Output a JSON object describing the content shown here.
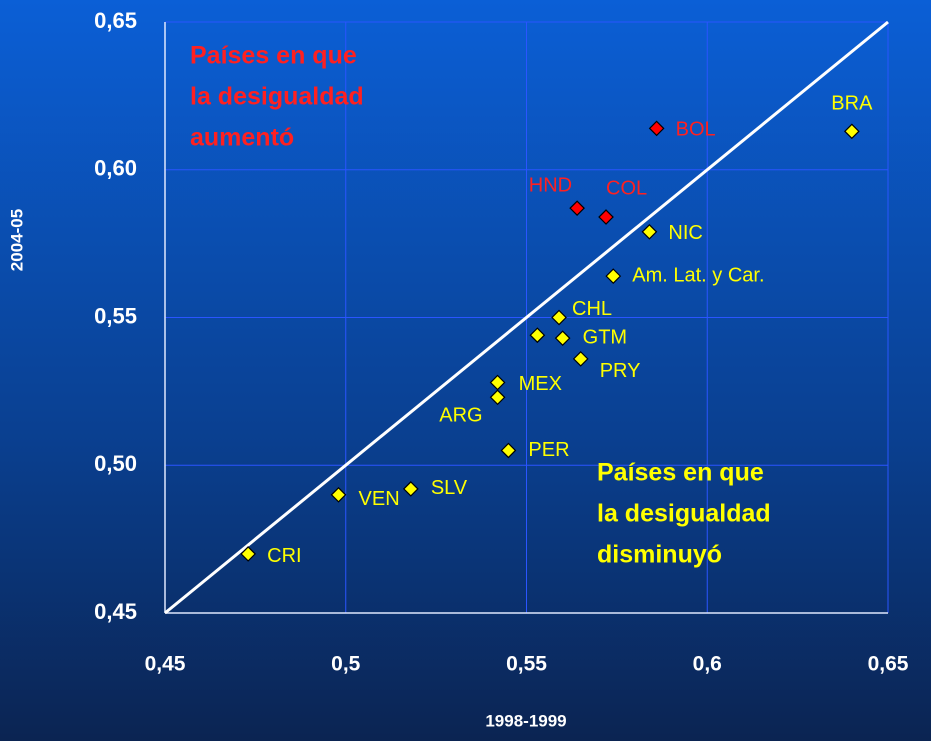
{
  "chart_data": {
    "type": "scatter",
    "xlabel": "1998-1999",
    "ylabel": "2004-05",
    "xlim": [
      0.45,
      0.65
    ],
    "ylim": [
      0.45,
      0.65
    ],
    "xticks": [
      {
        "value": 0.45,
        "label": "0,45"
      },
      {
        "value": 0.5,
        "label": "0,5"
      },
      {
        "value": 0.55,
        "label": "0,55"
      },
      {
        "value": 0.6,
        "label": "0,6"
      },
      {
        "value": 0.65,
        "label": "0,65"
      }
    ],
    "yticks": [
      {
        "value": 0.45,
        "label": "0,45"
      },
      {
        "value": 0.5,
        "label": "0,50"
      },
      {
        "value": 0.55,
        "label": "0,55"
      },
      {
        "value": 0.6,
        "label": "0,60"
      },
      {
        "value": 0.65,
        "label": "0,65"
      }
    ],
    "grid": true,
    "series": [
      {
        "color": "#ffff00",
        "label_color": "#ffff00",
        "labels": [
          "CRI",
          "VEN",
          "SLV",
          "ARG",
          "MEX",
          "PER",
          null,
          "GTM",
          "CHL",
          "PRY",
          "Am. Lat. y Car.",
          "NIC",
          "BRA"
        ],
        "x": [
          0.473,
          0.498,
          0.518,
          0.542,
          0.542,
          0.545,
          0.553,
          0.56,
          0.559,
          0.565,
          0.574,
          0.584,
          0.64
        ],
        "values": [
          0.47,
          0.49,
          0.492,
          0.523,
          0.528,
          0.505,
          0.544,
          0.543,
          0.55,
          0.536,
          0.564,
          0.579,
          0.613
        ]
      },
      {
        "color": "#ff0000",
        "label_color": "#ff2020",
        "labels": [
          "HND",
          "COL",
          "BOL"
        ],
        "x": [
          0.564,
          0.572,
          0.586
        ],
        "values": [
          0.587,
          0.584,
          0.614
        ]
      }
    ],
    "annotations": [
      {
        "lines": [
          "Países en que",
          "la desigualdad",
          "aumentó"
        ],
        "color": "#ff2020"
      },
      {
        "lines": [
          "Países en que",
          "la desigualdad",
          "disminuyó"
        ],
        "color": "#ffff00"
      }
    ]
  }
}
